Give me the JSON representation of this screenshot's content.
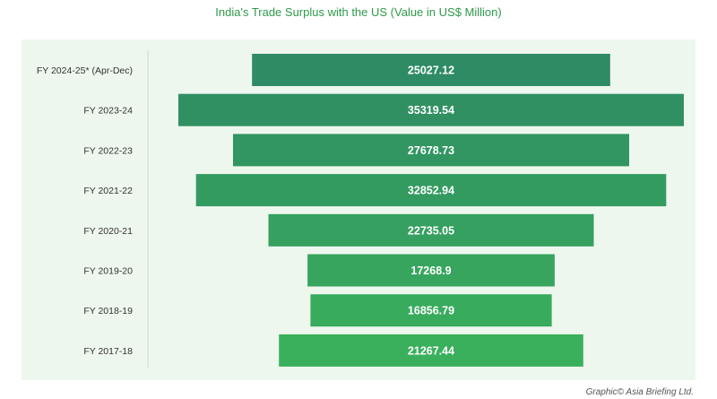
{
  "title": "India's Trade Surplus with the US (Value in US$ Million)",
  "credit": "Graphic© Asia Briefing Ltd.",
  "colors": {
    "background": "#ffffff",
    "panel": "#eef7ee",
    "title": "#2e9a4a",
    "bar_dark": "#2e8b63",
    "bar_light": "#3ab05c"
  },
  "chart_data": {
    "type": "bar",
    "orientation": "horizontal",
    "layout": "funnel-centered",
    "title": "India's Trade Surplus with the US (Value in US$ Million)",
    "xlabel": "",
    "ylabel": "",
    "grid": false,
    "categories": [
      "FY 2024-25* (Apr-Dec)",
      "FY 2023-24",
      "FY 2022-23",
      "FY 2021-22",
      "FY 2020-21",
      "FY 2019-20",
      "FY 2018-19",
      "FY 2017-18"
    ],
    "values": [
      25027.12,
      35319.54,
      27678.73,
      32852.94,
      22735.05,
      17268.9,
      16856.79,
      21267.44
    ],
    "value_labels": [
      "25027.12",
      "35319.54",
      "27678.73",
      "32852.94",
      "22735.05",
      "17268.9",
      "16856.79",
      "21267.44"
    ]
  }
}
